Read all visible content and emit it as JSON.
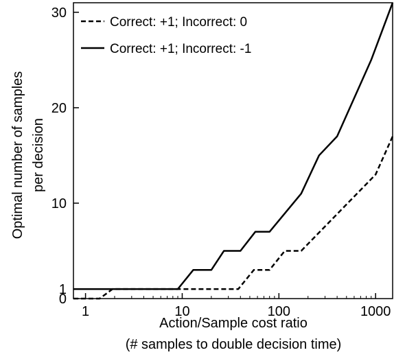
{
  "chart_data": {
    "type": "line",
    "xscale": "log",
    "xlim": [
      0.75,
      1500
    ],
    "ylim": [
      0,
      31
    ],
    "xticks": [
      1,
      10,
      100,
      1000
    ],
    "xtick_labels": [
      "1",
      "10",
      "100",
      "1000"
    ],
    "yticks": [
      0,
      1,
      10,
      20,
      30
    ],
    "ytick_labels": [
      "0",
      "1",
      "10",
      "20",
      "30"
    ],
    "xlabel": "Action/Sample cost ratio",
    "xlabel2": "(# samples to double decision time)",
    "ylabel": "Optimal number of samples",
    "ylabel2": "per decision",
    "legend_position": "top-left",
    "grid": false,
    "series": [
      {
        "name": "Correct: +1; Incorrect: 0",
        "style": "dashed",
        "color": "#000000",
        "x": [
          0.75,
          1.4,
          1.9,
          38,
          55,
          80,
          115,
          170,
          1000,
          1500
        ],
        "y": [
          0,
          0,
          1,
          1,
          3,
          3,
          5,
          5,
          13,
          17
        ]
      },
      {
        "name": "Correct: +1; Incorrect: -1",
        "style": "solid",
        "color": "#000000",
        "x": [
          0.75,
          9,
          13,
          20,
          27,
          40,
          57,
          80,
          170,
          260,
          400,
          900,
          1500
        ],
        "y": [
          1,
          1,
          3,
          3,
          5,
          5,
          7,
          7,
          11,
          15,
          17,
          25,
          31
        ]
      }
    ]
  }
}
